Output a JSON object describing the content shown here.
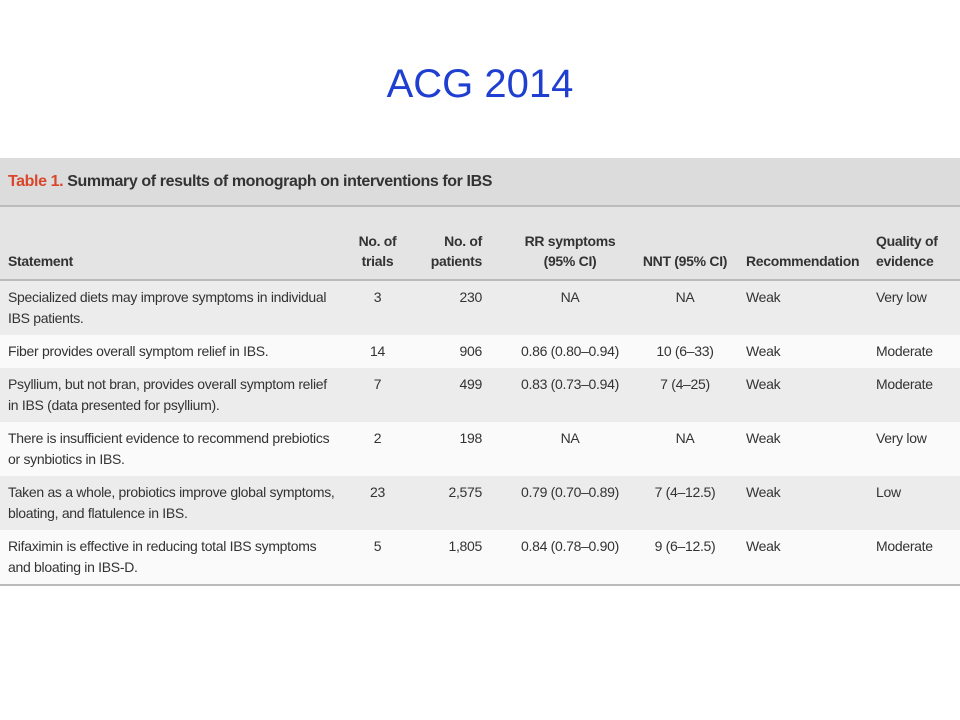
{
  "title": "ACG 2014",
  "table": {
    "caption_label": "Table 1.",
    "caption": "Summary of results of monograph on interventions for IBS",
    "headers": [
      "Statement",
      "No. of trials",
      "No. of patients",
      "RR symptoms (95% CI)",
      "NNT (95% CI)",
      "Recommendation",
      "Quality of evidence"
    ],
    "rows": [
      [
        "Specialized diets may improve symptoms in individual IBS patients.",
        "3",
        "230",
        "NA",
        "NA",
        "Weak",
        "Very low"
      ],
      [
        "Fiber provides overall symptom relief in IBS.",
        "14",
        "906",
        "0.86 (0.80–0.94)",
        "10 (6–33)",
        "Weak",
        "Moderate"
      ],
      [
        "Psyllium, but not bran, provides overall symptom relief in IBS (data presented for psyllium).",
        "7",
        "499",
        "0.83 (0.73–0.94)",
        "7 (4–25)",
        "Weak",
        "Moderate"
      ],
      [
        "There is insufficient evidence to recommend prebiotics or synbiotics in IBS.",
        "2",
        "198",
        "NA",
        "NA",
        "Weak",
        "Very low"
      ],
      [
        "Taken as a whole, probiotics improve global symptoms, bloating, and flatulence in IBS.",
        "23",
        "2,575",
        "0.79 (0.70–0.89)",
        "7 (4–12.5)",
        "Weak",
        "Low"
      ],
      [
        "Rifaximin is effective in reducing total IBS symptoms and bloating in IBS-D.",
        "5",
        "1,805",
        "0.84 (0.78–0.90)",
        "9 (6–12.5)",
        "Weak",
        "Moderate"
      ]
    ]
  }
}
